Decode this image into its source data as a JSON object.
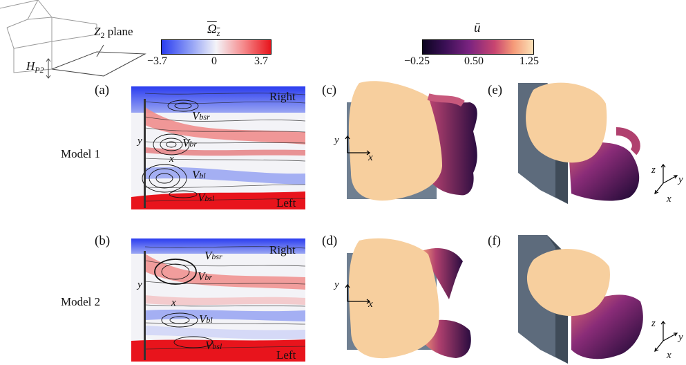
{
  "inset": {
    "plane_label": "Z",
    "plane_sub": "2",
    "plane_suffix": " plane",
    "height_label": "H",
    "height_sub": "P2"
  },
  "colorbar_vorticity": {
    "title": "Ω",
    "title_sub": "z",
    "ticks": [
      "−3.7",
      "0",
      "3.7"
    ],
    "colors": [
      "#2a3cf0",
      "#f4f4f8",
      "#e8141c"
    ]
  },
  "colorbar_velocity": {
    "title": "ū",
    "ticks": [
      "−0.25",
      "0.50",
      "1.25"
    ],
    "colors": [
      "#0c0420",
      "#6a1f7a",
      "#e55a66",
      "#fbe2b8"
    ]
  },
  "panels": {
    "a": "(a)",
    "b": "(b)",
    "c": "(c)",
    "d": "(d)",
    "e": "(e)",
    "f": "(f)"
  },
  "models": [
    "Model 1",
    "Model 2"
  ],
  "flow_labels": {
    "right": "Right",
    "left": "Left",
    "vortex": "V",
    "bsr": "bsr",
    "br": "br",
    "bl": "bl",
    "bsl": "bsl"
  },
  "axes": {
    "x": "x",
    "y": "y",
    "z": "z"
  }
}
